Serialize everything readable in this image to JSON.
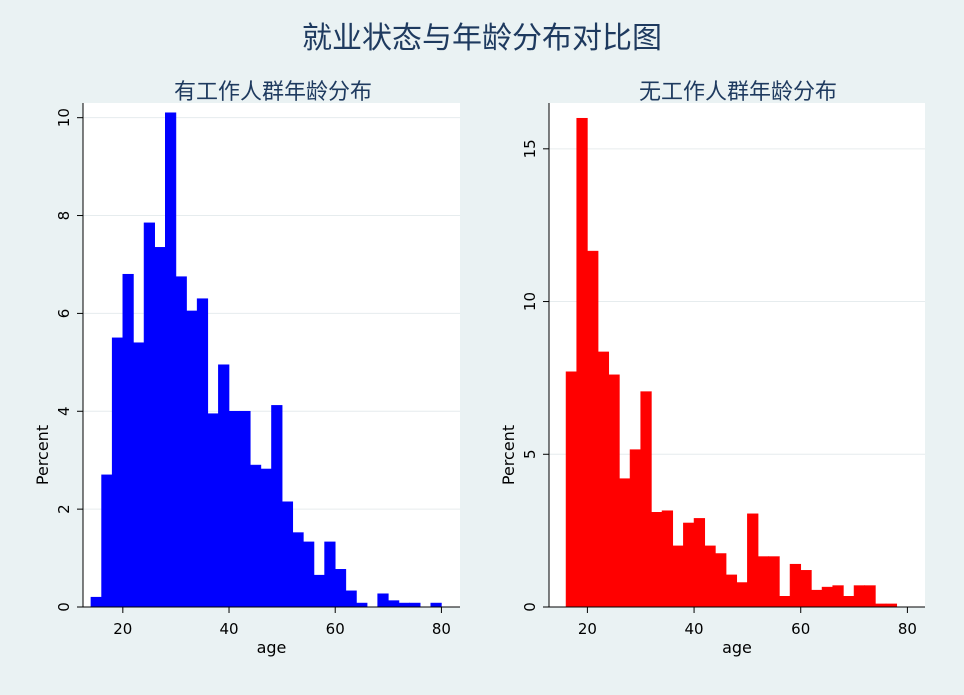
{
  "figure": {
    "title": "就业状态与年龄分布对比图",
    "background": "#eaf2f3"
  },
  "chart_data": [
    {
      "type": "bar",
      "title": "有工作人群年龄分布",
      "xlabel": "age",
      "ylabel": "Percent",
      "color": "#0000ff",
      "bin_width": 2,
      "xlim": [
        12.5,
        83.5
      ],
      "ylim": [
        0,
        10.3
      ],
      "xticks": [
        "20",
        "40",
        "60",
        "80"
      ],
      "xtick_values": [
        20,
        40,
        60,
        80
      ],
      "yticks": [
        "0",
        "2",
        "4",
        "6",
        "8",
        "10"
      ],
      "ytick_values": [
        0,
        2,
        4,
        6,
        8,
        10
      ],
      "grid": true,
      "bins": [
        {
          "x": 15,
          "y": 0.2
        },
        {
          "x": 17,
          "y": 2.7
        },
        {
          "x": 19,
          "y": 5.5
        },
        {
          "x": 21,
          "y": 6.8
        },
        {
          "x": 23,
          "y": 5.4
        },
        {
          "x": 25,
          "y": 7.85
        },
        {
          "x": 27,
          "y": 7.35
        },
        {
          "x": 29,
          "y": 10.1
        },
        {
          "x": 31,
          "y": 6.75
        },
        {
          "x": 33,
          "y": 6.05
        },
        {
          "x": 35,
          "y": 6.3
        },
        {
          "x": 37,
          "y": 3.95
        },
        {
          "x": 39,
          "y": 4.95
        },
        {
          "x": 41,
          "y": 4.0
        },
        {
          "x": 43,
          "y": 4.0
        },
        {
          "x": 45,
          "y": 2.9
        },
        {
          "x": 47,
          "y": 2.82
        },
        {
          "x": 49,
          "y": 4.12
        },
        {
          "x": 51,
          "y": 2.15
        },
        {
          "x": 53,
          "y": 1.52
        },
        {
          "x": 55,
          "y": 1.33
        },
        {
          "x": 57,
          "y": 0.65
        },
        {
          "x": 59,
          "y": 1.33
        },
        {
          "x": 61,
          "y": 0.77
        },
        {
          "x": 63,
          "y": 0.33
        },
        {
          "x": 65,
          "y": 0.08
        },
        {
          "x": 67,
          "y": 0.0
        },
        {
          "x": 69,
          "y": 0.27
        },
        {
          "x": 71,
          "y": 0.13
        },
        {
          "x": 73,
          "y": 0.08
        },
        {
          "x": 75,
          "y": 0.08
        },
        {
          "x": 77,
          "y": 0.0
        },
        {
          "x": 79,
          "y": 0.08
        }
      ]
    },
    {
      "type": "bar",
      "title": "无工作人群年龄分布",
      "xlabel": "age",
      "ylabel": "Percent",
      "color": "#ff0000",
      "bin_width": 2,
      "xlim": [
        12.8,
        83.3
      ],
      "ylim": [
        0,
        16.5
      ],
      "xticks": [
        "20",
        "40",
        "60",
        "80"
      ],
      "xtick_values": [
        20,
        40,
        60,
        80
      ],
      "yticks": [
        "0",
        "5",
        "10",
        "15"
      ],
      "ytick_values": [
        0,
        5,
        10,
        15
      ],
      "grid": true,
      "bins": [
        {
          "x": 17,
          "y": 7.7
        },
        {
          "x": 19,
          "y": 16.0
        },
        {
          "x": 21,
          "y": 11.65
        },
        {
          "x": 23,
          "y": 8.35
        },
        {
          "x": 25,
          "y": 7.6
        },
        {
          "x": 27,
          "y": 4.2
        },
        {
          "x": 29,
          "y": 5.15
        },
        {
          "x": 31,
          "y": 7.05
        },
        {
          "x": 33,
          "y": 3.1
        },
        {
          "x": 35,
          "y": 3.15
        },
        {
          "x": 37,
          "y": 2.0
        },
        {
          "x": 39,
          "y": 2.75
        },
        {
          "x": 41,
          "y": 2.9
        },
        {
          "x": 43,
          "y": 2.0
        },
        {
          "x": 45,
          "y": 1.75
        },
        {
          "x": 47,
          "y": 1.05
        },
        {
          "x": 49,
          "y": 0.8
        },
        {
          "x": 51,
          "y": 3.05
        },
        {
          "x": 53,
          "y": 1.65
        },
        {
          "x": 55,
          "y": 1.65
        },
        {
          "x": 57,
          "y": 0.35
        },
        {
          "x": 59,
          "y": 1.4
        },
        {
          "x": 61,
          "y": 1.2
        },
        {
          "x": 63,
          "y": 0.55
        },
        {
          "x": 65,
          "y": 0.65
        },
        {
          "x": 67,
          "y": 0.7
        },
        {
          "x": 69,
          "y": 0.35
        },
        {
          "x": 71,
          "y": 0.7
        },
        {
          "x": 73,
          "y": 0.7
        },
        {
          "x": 75,
          "y": 0.1
        },
        {
          "x": 77,
          "y": 0.1
        }
      ]
    }
  ]
}
